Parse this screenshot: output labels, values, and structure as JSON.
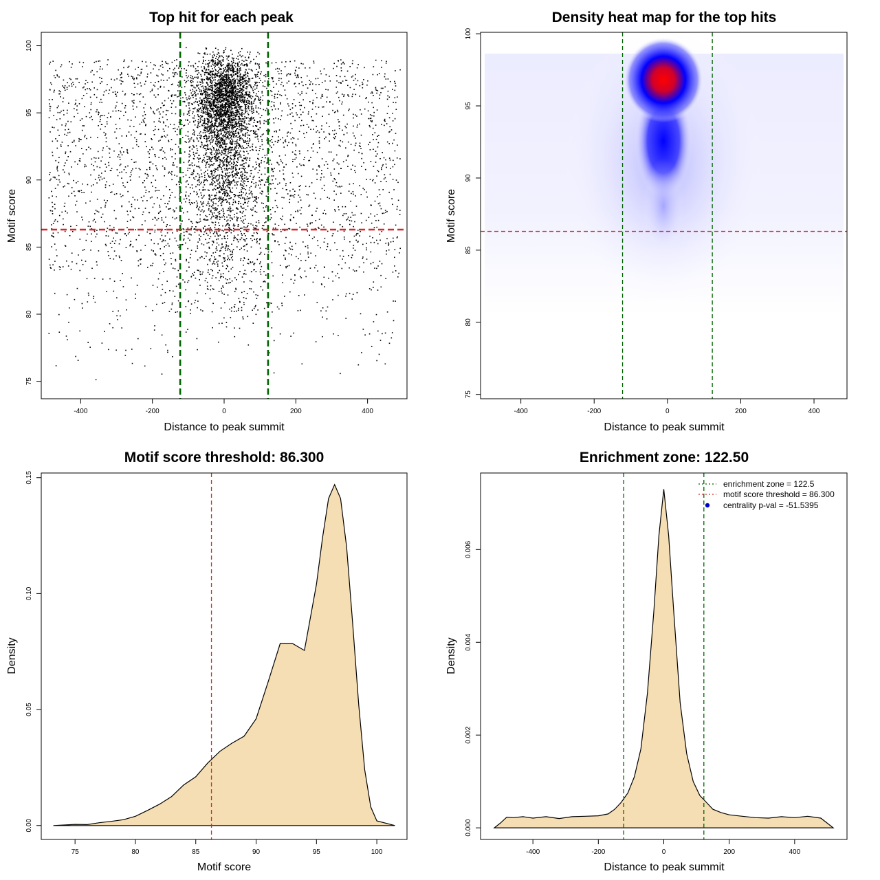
{
  "chart_data": [
    {
      "type": "scatter",
      "title": "Top hit for each peak",
      "xlabel": "Distance to peak summit",
      "ylabel": "Motif score",
      "xlim": [
        -510,
        510
      ],
      "ylim": [
        73.7,
        101
      ],
      "xticks": [
        -400,
        -200,
        0,
        200,
        400
      ],
      "yticks": [
        75,
        80,
        85,
        90,
        95,
        100
      ],
      "points_description": "Dense cloud of top-hit points: concentrated within the enrichment zone near distance 0 with scores 86-100, sparse background spread over -500..500 with scores ~75-99",
      "vlines": [
        -122.5,
        122.5
      ],
      "vline_color": "#006400",
      "hline": 86.3,
      "hline_color": "#d62728",
      "grid": false
    },
    {
      "type": "heatmap",
      "title": "Density heat map for the top hits",
      "xlabel": "Distance to peak summit",
      "ylabel": "Motif score",
      "xlim": [
        -510,
        490
      ],
      "ylim": [
        74.7,
        100.1
      ],
      "xticks": [
        -400,
        -200,
        0,
        200,
        400
      ],
      "yticks": [
        75,
        80,
        85,
        90,
        95,
        100
      ],
      "peak": {
        "x": 0,
        "y": 96.8
      },
      "colormap": [
        "#ffffff",
        "#0000ff",
        "#ff0000"
      ],
      "vlines": [
        -122.5,
        122.5
      ],
      "vline_color": "#006400",
      "hline": 86.3,
      "hline_color": "#d62728",
      "grid": false
    },
    {
      "type": "area",
      "title": "Motif score threshold: 86.300",
      "xlabel": "Motif score",
      "ylabel": "Density",
      "xlim": [
        72.2,
        102.5
      ],
      "ylim": [
        -0.006,
        0.152
      ],
      "xticks": [
        75,
        80,
        85,
        90,
        95,
        100
      ],
      "yticks": [
        0.0,
        0.05,
        0.1,
        0.15
      ],
      "ytick_labels": [
        "0.00",
        "0.05",
        "0.10",
        "0.15"
      ],
      "fill_color": "#f5deb3",
      "x": [
        73.2,
        75,
        76,
        77,
        78,
        79,
        80,
        81,
        82,
        83,
        84,
        85,
        86,
        87,
        88,
        89,
        90,
        91,
        92,
        93,
        94,
        95,
        95.5,
        96,
        96.5,
        97,
        97.5,
        98,
        98.5,
        99,
        99.5,
        100,
        101.5
      ],
      "y": [
        0.0,
        0.0005,
        0.0004,
        0.0012,
        0.0018,
        0.0025,
        0.004,
        0.0065,
        0.0092,
        0.0125,
        0.0175,
        0.021,
        0.027,
        0.032,
        0.0355,
        0.0385,
        0.046,
        0.062,
        0.0785,
        0.0785,
        0.0755,
        0.104,
        0.124,
        0.141,
        0.147,
        0.141,
        0.12,
        0.087,
        0.052,
        0.024,
        0.008,
        0.002,
        0.0
      ],
      "vlines": [
        86.3
      ],
      "vline_color": "#d62728",
      "grid": false
    },
    {
      "type": "area",
      "title": "Enrichment zone: 122.50",
      "xlabel": "Distance to peak summit",
      "ylabel": "Density",
      "xlim": [
        -560,
        560
      ],
      "ylim": [
        -0.00025,
        0.00765
      ],
      "xticks": [
        -400,
        -200,
        0,
        200,
        400
      ],
      "yticks": [
        0.0,
        0.002,
        0.004,
        0.006
      ],
      "ytick_labels": [
        "0.000",
        "0.002",
        "0.004",
        "0.006"
      ],
      "fill_color": "#f5deb3",
      "x": [
        -518,
        -500,
        -480,
        -460,
        -430,
        -400,
        -360,
        -320,
        -280,
        -240,
        -200,
        -170,
        -150,
        -130,
        -110,
        -90,
        -70,
        -50,
        -30,
        -15,
        0,
        15,
        30,
        50,
        70,
        90,
        110,
        130,
        150,
        175,
        200,
        240,
        280,
        320,
        360,
        400,
        440,
        480,
        500,
        518
      ],
      "y": [
        0.0,
        0.0001,
        0.00023,
        0.00022,
        0.00024,
        0.00021,
        0.00024,
        0.0002,
        0.00024,
        0.00025,
        0.00026,
        0.0003,
        0.0004,
        0.00055,
        0.00075,
        0.0011,
        0.0017,
        0.0029,
        0.0047,
        0.0063,
        0.0073,
        0.0063,
        0.0047,
        0.0027,
        0.0016,
        0.001,
        0.0007,
        0.00055,
        0.0004,
        0.00033,
        0.00028,
        0.00025,
        0.00022,
        0.00021,
        0.00024,
        0.00022,
        0.00025,
        0.00021,
        0.0001,
        0.0
      ],
      "vlines": [
        -122.5,
        122.5
      ],
      "vline_color": "#006400",
      "legend": {
        "position": "top-right",
        "entries": [
          {
            "label": "enrichment zone = 122.5",
            "color": "#006400",
            "symbol": "dotted-line"
          },
          {
            "label": "motif score threshold = 86.300",
            "color": "#d62728",
            "symbol": "dotted-line"
          },
          {
            "label": "centrality p-val = -51.5395",
            "color": "#0000cd",
            "symbol": "dot"
          }
        ]
      },
      "grid": false
    }
  ]
}
